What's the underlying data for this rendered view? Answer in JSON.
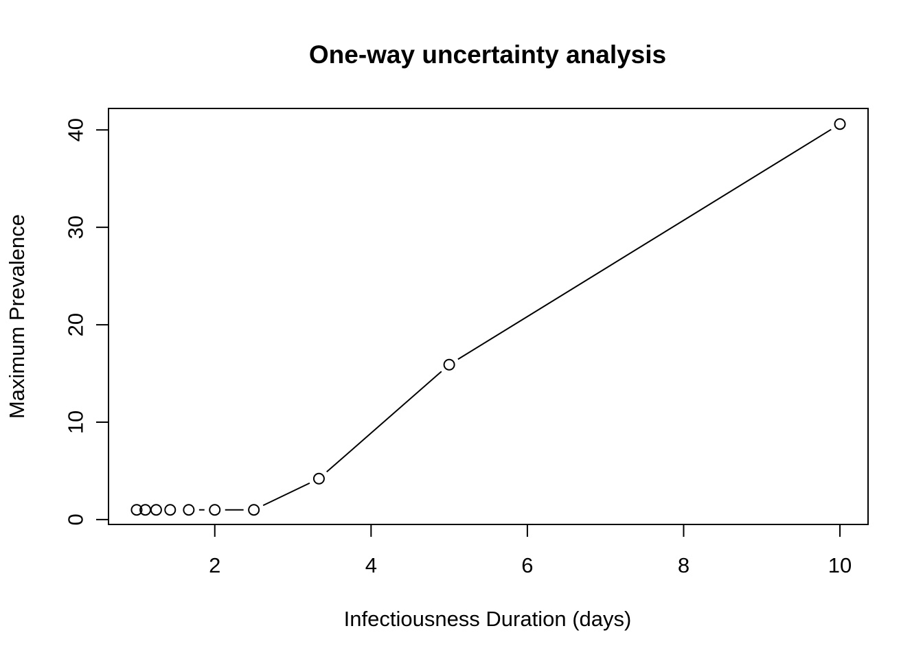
{
  "chart_data": {
    "type": "line",
    "title": "One-way uncertainty analysis",
    "xlabel": "Infectiousness Duration (days)",
    "ylabel": "Maximum Prevalence",
    "xlim": [
      0.64,
      10.36
    ],
    "ylim": [
      -0.5,
      42.2
    ],
    "xticks": [
      2,
      4,
      6,
      8,
      10
    ],
    "yticks": [
      0,
      10,
      20,
      30,
      40
    ],
    "xtick_labels": [
      "2",
      "4",
      "6",
      "8",
      "10"
    ],
    "ytick_labels": [
      "0",
      "10",
      "20",
      "30",
      "40"
    ],
    "grid": false,
    "legend": "none",
    "line_style": "both (points with gapped lines)",
    "marker": "open-circle",
    "color": "#000000",
    "series": [
      {
        "x": [
          1.0,
          1.111,
          1.25,
          1.429,
          1.667,
          2.0,
          2.5,
          3.333,
          5.0,
          10.0
        ],
        "y": [
          1.0,
          1.0,
          1.0,
          1.0,
          1.0,
          1.0,
          1.0,
          4.2,
          15.9,
          40.6
        ]
      }
    ]
  }
}
